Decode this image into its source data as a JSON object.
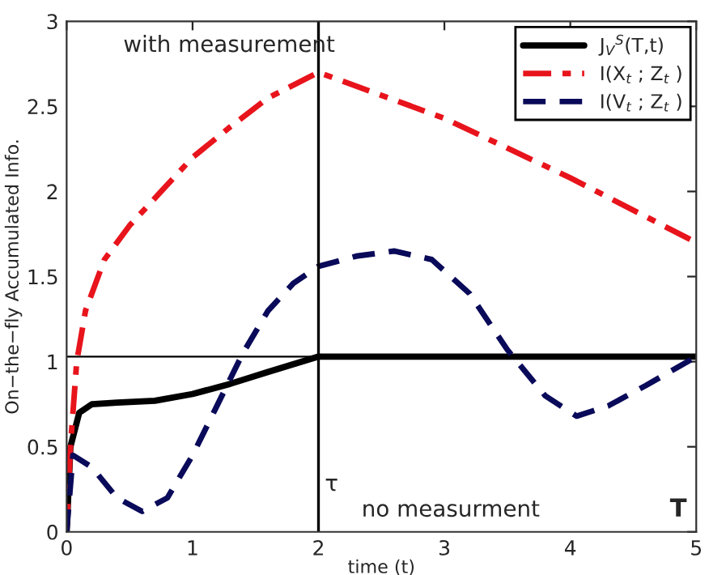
{
  "chart_data": {
    "type": "line",
    "xlabel": "time (t)",
    "ylabel": "On−the−fly Accumulated Info.",
    "xlim": [
      0,
      5
    ],
    "ylim": [
      0,
      3
    ],
    "xticks": [
      0,
      1,
      2,
      3,
      4,
      5
    ],
    "yticks": [
      0,
      0.5,
      1,
      1.5,
      2,
      2.5,
      3
    ],
    "grid": false,
    "legend": "top right",
    "series": [
      {
        "name": "J$_{V}$$^{S}$(T,t)",
        "color": "#000000",
        "line_style": "solid",
        "x": [
          0,
          0.03,
          0.1,
          0.2,
          0.4,
          0.7,
          1.0,
          1.3,
          1.6,
          2.0,
          5.0
        ],
        "values": [
          0,
          0.5,
          0.7,
          0.75,
          0.76,
          0.77,
          0.81,
          0.87,
          0.94,
          1.03,
          1.03
        ]
      },
      {
        "name": "I(X$_{t}$ ; Z$_{t}$ )",
        "color": "#e8141c",
        "line_style": "dashdot",
        "x": [
          0,
          0.03,
          0.08,
          0.15,
          0.3,
          0.5,
          0.75,
          1.0,
          1.3,
          1.6,
          2.0,
          3.0,
          4.0,
          5.0
        ],
        "values": [
          0,
          0.5,
          1.0,
          1.3,
          1.6,
          1.8,
          2.0,
          2.2,
          2.38,
          2.55,
          2.7,
          2.43,
          2.08,
          1.7
        ]
      },
      {
        "name": "I(V$_{t}$ ; Z$_{t}$ )",
        "color": "#0a0a5a",
        "line_style": "dashed",
        "x": [
          0,
          0.05,
          0.2,
          0.4,
          0.6,
          0.8,
          1.0,
          1.2,
          1.4,
          1.6,
          1.8,
          2.0,
          2.3,
          2.6,
          2.9,
          3.2,
          3.5,
          3.8,
          4.05,
          4.3,
          4.6,
          5.0
        ],
        "values": [
          0,
          0.45,
          0.38,
          0.2,
          0.12,
          0.2,
          0.45,
          0.75,
          1.05,
          1.3,
          1.46,
          1.56,
          1.62,
          1.65,
          1.6,
          1.4,
          1.07,
          0.8,
          0.68,
          0.74,
          0.86,
          1.03
        ]
      }
    ],
    "ref_lines": [
      {
        "axis": "x",
        "value": 2,
        "label": "τ",
        "color": "#000000"
      },
      {
        "axis": "y",
        "value": 1.03,
        "color": "#000000"
      }
    ],
    "annotations": [
      "with measurement",
      "no measurment",
      "T"
    ]
  }
}
